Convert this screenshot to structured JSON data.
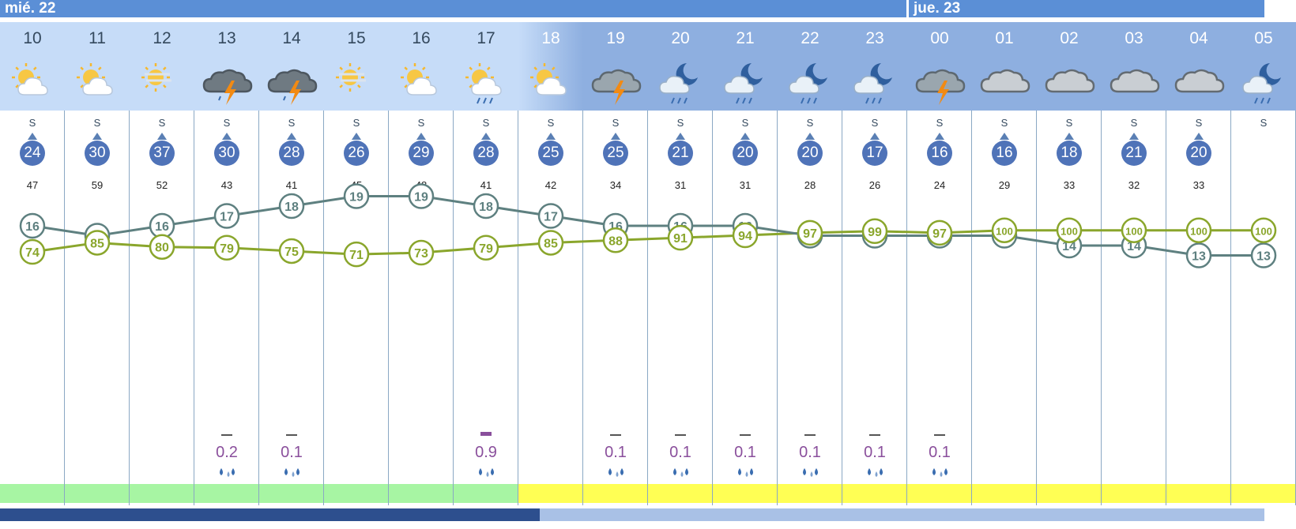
{
  "days": [
    "mié. 22",
    "jue. 23"
  ],
  "chart_data": {
    "type": "line",
    "hours": [
      "10",
      "11",
      "12",
      "13",
      "14",
      "15",
      "16",
      "17",
      "18",
      "19",
      "20",
      "21",
      "22",
      "23",
      "00",
      "01",
      "02",
      "03",
      "04",
      "05"
    ],
    "icons": [
      "sun-cloud",
      "sun-cloud",
      "sun-haze",
      "storm",
      "storm",
      "sun-haze",
      "sun-cloud",
      "sun-rain",
      "sun-cloud",
      "cloud-storm",
      "moon-rain",
      "moon-rain",
      "moon-rain",
      "moon-rain",
      "cloud-storm",
      "cloud",
      "cloud",
      "cloud",
      "cloud",
      "moon-rain"
    ],
    "night": [
      false,
      false,
      false,
      false,
      false,
      false,
      false,
      false,
      true,
      true,
      true,
      true,
      true,
      true,
      true,
      true,
      true,
      true,
      true,
      true
    ],
    "wind_dir": [
      "S",
      "S",
      "S",
      "S",
      "S",
      "S",
      "S",
      "S",
      "S",
      "S",
      "S",
      "S",
      "S",
      "S",
      "S",
      "S",
      "S",
      "S",
      "S",
      "S"
    ],
    "wind_speed": [
      24,
      30,
      37,
      30,
      28,
      26,
      29,
      28,
      25,
      25,
      21,
      20,
      20,
      17,
      16,
      16,
      18,
      21,
      20,
      ""
    ],
    "gusts": [
      47,
      59,
      52,
      43,
      41,
      45,
      48,
      41,
      42,
      34,
      31,
      31,
      28,
      26,
      24,
      29,
      33,
      32,
      33,
      ""
    ],
    "series": [
      {
        "values": [
          16,
          15,
          16,
          17,
          18,
          19,
          19,
          18,
          17,
          16,
          16,
          16,
          15,
          15,
          15,
          15,
          14,
          14,
          13,
          13
        ],
        "color": "#5e8080"
      },
      {
        "values": [
          74,
          85,
          80,
          79,
          75,
          71,
          73,
          79,
          85,
          88,
          91,
          94,
          97,
          99,
          97,
          100,
          100,
          100,
          100,
          100
        ],
        "color": "#8aa62c"
      }
    ],
    "precip": [
      "",
      "",
      "",
      "0.2",
      "0.1",
      "",
      "",
      "0.9",
      "",
      "0.1",
      "0.1",
      "0.1",
      "0.1",
      "0.1",
      "0.1",
      "",
      "",
      "",
      "",
      ""
    ],
    "status_colors": [
      "#a7f5a3",
      "#a7f5a3",
      "#a7f5a3",
      "#a7f5a3",
      "#a7f5a3",
      "#a7f5a3",
      "#a7f5a3",
      "#a7f5a3",
      "#ffff54",
      "#ffff54",
      "#ffff54",
      "#ffff54",
      "#ffff54",
      "#ffff54",
      "#ffff54",
      "#ffff54",
      "#ffff54",
      "#ffff54",
      "#ffff54",
      "#ffff54"
    ]
  }
}
